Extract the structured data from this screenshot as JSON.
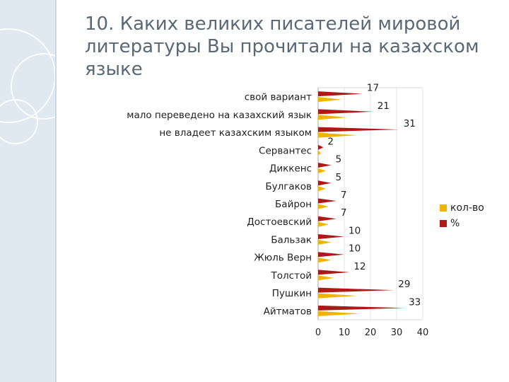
{
  "title": "10. Каких великих писателей мировой литературы Вы прочитали на казахском языке",
  "colors": {
    "kol_vo": "#f0b400",
    "percent": "#b01818",
    "text": "#5a6976"
  },
  "chart_data": {
    "type": "bar",
    "orientation": "horizontal",
    "style": "3d-cone",
    "categories": [
      "Айтматов",
      "Пушкин",
      "Толстой",
      "Жюль Верн",
      "Бальзак",
      "Достоевский",
      "Байрон",
      "Булгаков",
      "Диккенс",
      "Сервантес",
      "не владеет казахским языком",
      "мало переведено на казахский язык",
      "свой вариант"
    ],
    "series": [
      {
        "name": "кол-во",
        "values": [
          16,
          15,
          6,
          5,
          5,
          4,
          4,
          3,
          3,
          1,
          15,
          11,
          9
        ]
      },
      {
        "name": "%",
        "values": [
          33,
          29,
          12,
          10,
          10,
          7,
          7,
          5,
          5,
          2,
          31,
          21,
          17
        ],
        "data_labels": [
          "33",
          "29",
          "12",
          "10",
          "10",
          "7",
          "7",
          "5",
          "5",
          "2",
          "31",
          "21",
          "17"
        ]
      }
    ],
    "xlim": [
      0,
      40
    ],
    "xticks": [
      "0",
      "10",
      "20",
      "30",
      "40"
    ],
    "legend_position": "right"
  }
}
